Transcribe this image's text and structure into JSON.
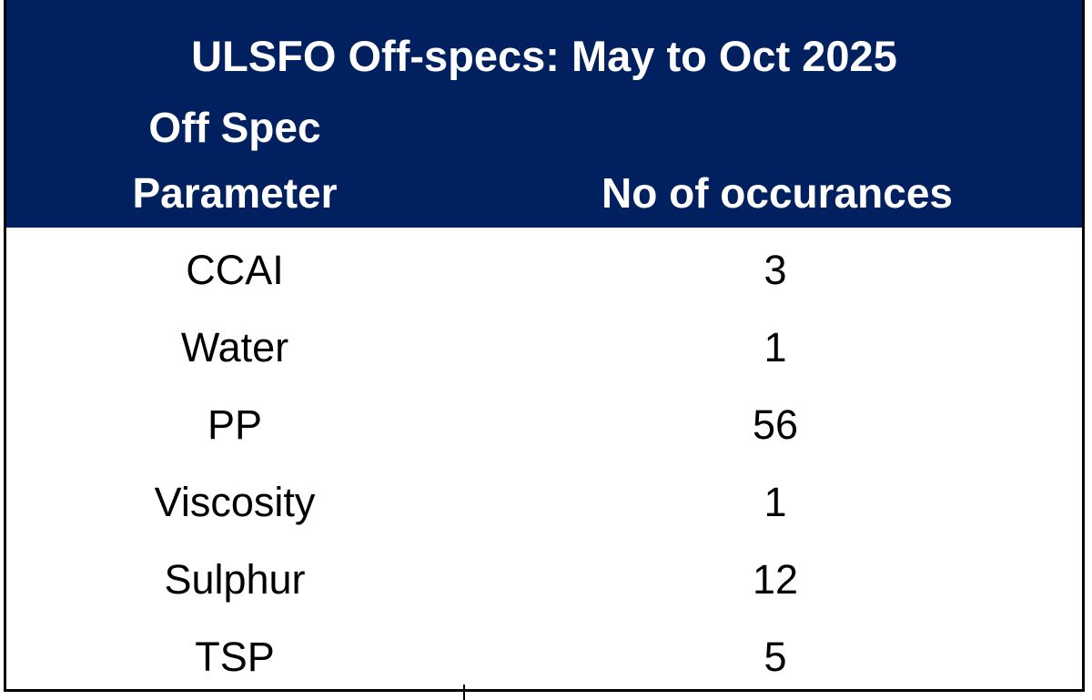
{
  "table": {
    "title": "ULSFO Off-specs: May to Oct 2025",
    "columns": [
      "Off Spec Parameter",
      "No of occurances"
    ],
    "rows": [
      [
        "CCAI",
        3
      ],
      [
        "Water",
        1
      ],
      [
        "PP",
        56
      ],
      [
        "Viscosity",
        1
      ],
      [
        "Sulphur",
        12
      ],
      [
        "TSP",
        5
      ]
    ]
  }
}
